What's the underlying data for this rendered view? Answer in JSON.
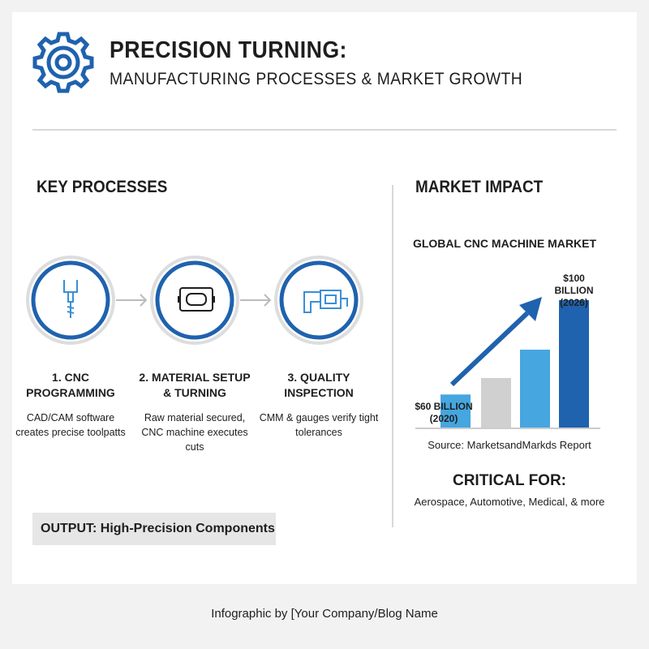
{
  "header": {
    "title": "PRECISION TURNING:",
    "subtitle": "MANUFACTURING PROCESSES & MARKET GROWTH"
  },
  "processes": {
    "title": "KEY PROCESSES",
    "steps": [
      {
        "label": "1. CNC PROGRAMMING",
        "description": "CAD/CAM software creates precise toolpatts"
      },
      {
        "label": "2. MATERIAL SETUP & TURNING",
        "description": "Raw material secured, CNC machine executes cuts"
      },
      {
        "label": "3. QUALITY INSPECTION",
        "description": "CMM & gauges verify tight tolerances"
      }
    ],
    "output": "OUTPUT: High-Precision Components"
  },
  "market": {
    "title": "MARKET IMPACT",
    "source": "Source: MarketsandMarkds Report",
    "critical_title": "CRITICAL FOR:",
    "critical_text": "Aerospace, Automotive, Medical, & more"
  },
  "chart_data": {
    "type": "bar",
    "title": "GLOBAL CNC MACHINE MARKET",
    "values": [
      60,
      67,
      79,
      100
    ],
    "value_labels": [
      "$60 BILLION (2020)",
      null,
      null,
      "$100 BILLION (2026)"
    ],
    "colors": [
      "#45a6e0",
      "#d0d0d0",
      "#45a6e0",
      "#1f62ae"
    ],
    "ylim": [
      46,
      100
    ]
  },
  "footer": "Infographic by [Your Company/Blog Name"
}
